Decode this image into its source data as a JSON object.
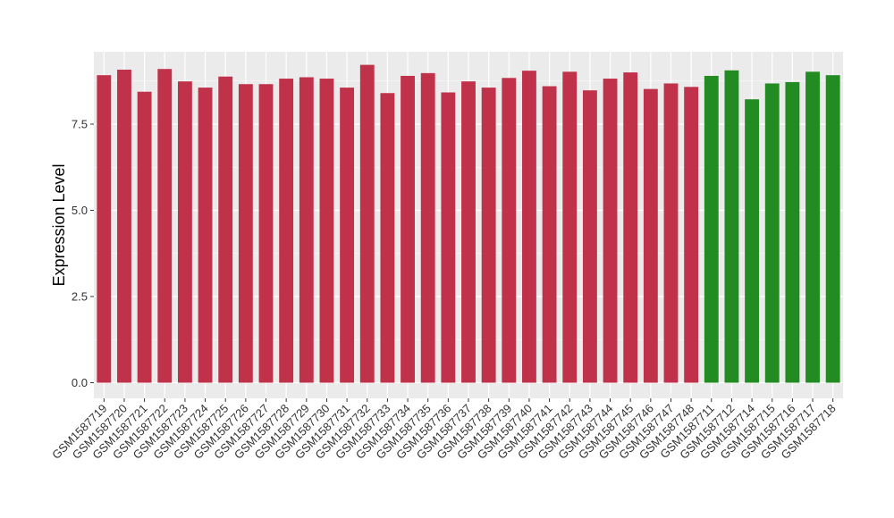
{
  "chart_data": {
    "type": "bar",
    "title": "",
    "xlabel": "",
    "ylabel": "Expression Level",
    "ylim": [
      0,
      9.6
    ],
    "yticks": [
      "0.0",
      "2.5",
      "5.0",
      "7.5"
    ],
    "ytick_values": [
      0,
      2.5,
      5.0,
      7.5
    ],
    "grid": true,
    "panel_background": "#ebebeb",
    "grid_color": "#ffffff",
    "categories": [
      "GSM1587719",
      "GSM1587720",
      "GSM1587721",
      "GSM1587722",
      "GSM1587723",
      "GSM1587724",
      "GSM1587725",
      "GSM1587726",
      "GSM1587727",
      "GSM1587728",
      "GSM1587729",
      "GSM1587730",
      "GSM1587731",
      "GSM1587732",
      "GSM1587733",
      "GSM1587734",
      "GSM1587735",
      "GSM1587736",
      "GSM1587737",
      "GSM1587738",
      "GSM1587739",
      "GSM1587740",
      "GSM1587741",
      "GSM1587742",
      "GSM1587743",
      "GSM1587744",
      "GSM1587745",
      "GSM1587746",
      "GSM1587747",
      "GSM1587748",
      "GSM1587711",
      "GSM1587712",
      "GSM1587714",
      "GSM1587715",
      "GSM1587716",
      "GSM1587717",
      "GSM1587718"
    ],
    "values": [
      8.92,
      9.08,
      8.44,
      9.1,
      8.74,
      8.56,
      8.88,
      8.66,
      8.66,
      8.82,
      8.86,
      8.82,
      8.56,
      9.22,
      8.4,
      8.9,
      8.98,
      8.42,
      8.74,
      8.56,
      8.84,
      9.05,
      8.6,
      9.02,
      8.48,
      8.82,
      9.0,
      8.52,
      8.68,
      8.58,
      8.9,
      9.06,
      8.22,
      8.68,
      8.72,
      9.02,
      8.92
    ],
    "colors": [
      "#c0314a",
      "#c0314a",
      "#c0314a",
      "#c0314a",
      "#c0314a",
      "#c0314a",
      "#c0314a",
      "#c0314a",
      "#c0314a",
      "#c0314a",
      "#c0314a",
      "#c0314a",
      "#c0314a",
      "#c0314a",
      "#c0314a",
      "#c0314a",
      "#c0314a",
      "#c0314a",
      "#c0314a",
      "#c0314a",
      "#c0314a",
      "#c0314a",
      "#c0314a",
      "#c0314a",
      "#c0314a",
      "#c0314a",
      "#c0314a",
      "#c0314a",
      "#c0314a",
      "#c0314a",
      "#228b22",
      "#228b22",
      "#228b22",
      "#228b22",
      "#228b22",
      "#228b22",
      "#228b22"
    ]
  }
}
